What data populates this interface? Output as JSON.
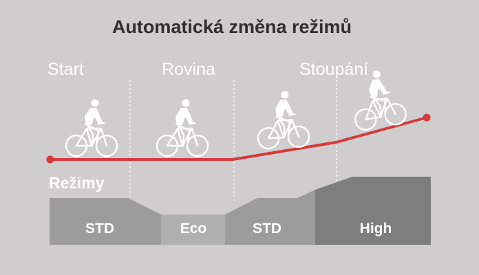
{
  "title": "Automatická změna režimů",
  "sections": [
    "Start",
    "Rovina",
    "Stoupání"
  ],
  "modes_label": "Režimy",
  "modes": [
    "STD",
    "Eco",
    "STD",
    "High"
  ],
  "colors": {
    "background": "#cfcdcd",
    "route": "#d8393a",
    "mode_std": "#9d9c9c",
    "mode_eco": "#b1b0b0",
    "mode_high": "#7f7e7e",
    "text_light": "#ffffff",
    "title": "#2f2f2f"
  },
  "icons": [
    "cyclist-icon"
  ]
}
